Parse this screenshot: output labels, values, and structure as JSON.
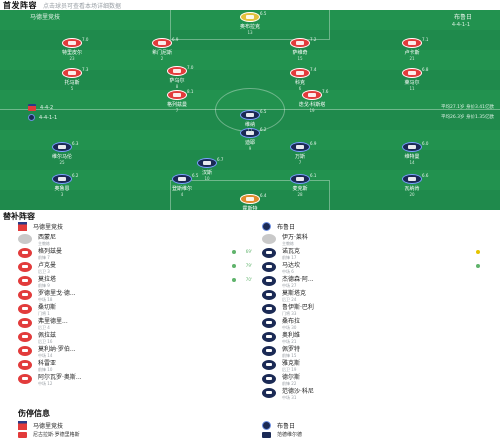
{
  "header": {
    "title": "首发阵容",
    "subtitle": "点击球员可查看本场详细数据"
  },
  "pitch": {
    "home_team": "马德里竞技",
    "away_team": "布鲁日",
    "away_form": "4-4-1-1",
    "center_text": "懂球帝",
    "home_formation": "4-4-2",
    "away_formation": "4-4-1-1",
    "home_summary": "平均27.1岁 身价3.41亿欧",
    "away_summary": "平均26.3岁 身价1.35亿欧",
    "home_players": [
      {
        "name": "奥布拉克",
        "num": "13",
        "rating": "6.5",
        "gk": true
      },
      {
        "name": "特里皮尔",
        "num": "23",
        "rating": "7.0"
      },
      {
        "name": "希门尼斯",
        "num": "2",
        "rating": "6.9"
      },
      {
        "name": "萨维奇",
        "num": "15",
        "rating": "7.2"
      },
      {
        "name": "卢卡斯",
        "num": "21",
        "rating": "7.1"
      },
      {
        "name": "托马斯",
        "num": "5",
        "rating": "7.3"
      },
      {
        "name": "萨乌尔",
        "num": "8",
        "rating": "7.0"
      },
      {
        "name": "科克",
        "num": "6",
        "rating": "7.4"
      },
      {
        "name": "莱马尔",
        "num": "11",
        "rating": "6.8"
      },
      {
        "name": "格列兹曼",
        "num": "7",
        "rating": "8.1"
      },
      {
        "name": "迭戈·科斯塔",
        "num": "19",
        "rating": "7.6"
      }
    ],
    "away_players": [
      {
        "name": "霍斯特",
        "num": "1",
        "rating": "6.4",
        "gk": true
      },
      {
        "name": "奥鲁恩",
        "num": "3",
        "rating": "6.2"
      },
      {
        "name": "登斯维尔",
        "num": "4",
        "rating": "6.5"
      },
      {
        "name": "麦克斯",
        "num": "28",
        "rating": "6.1"
      },
      {
        "name": "瓦纳肯",
        "num": "20",
        "rating": "6.6"
      },
      {
        "name": "维尔马伦",
        "num": "25",
        "rating": "6.3"
      },
      {
        "name": "汉斯",
        "num": "10",
        "rating": "6.7"
      },
      {
        "name": "万斯",
        "num": "7",
        "rating": "6.9"
      },
      {
        "name": "维特曼",
        "num": "14",
        "rating": "6.0"
      },
      {
        "name": "迪耶",
        "num": "9",
        "rating": "6.2"
      },
      {
        "name": "维纳",
        "num": "11",
        "rating": "6.5"
      }
    ]
  },
  "substitutes": {
    "title": "替补阵容",
    "home": {
      "team": "马德里竞技",
      "coach": {
        "name": "西蒙尼",
        "meta": "主教练"
      },
      "players": [
        {
          "name": "格列兹曼",
          "meta": "前锋 7",
          "time": "69'",
          "swap": "green"
        },
        {
          "name": "卢克曼",
          "meta": "后卫 3",
          "time": "79'",
          "swap": "green"
        },
        {
          "name": "莫拉塔",
          "meta": "前锋 9",
          "time": "70'",
          "swap": "green"
        },
        {
          "name": "罗德里戈·德...",
          "meta": "中场 18",
          "time": "",
          "swap": ""
        },
        {
          "name": "桑切斯",
          "meta": "门将 1",
          "time": "",
          "swap": ""
        },
        {
          "name": "弗里德里...",
          "meta": "后卫 4",
          "time": "",
          "swap": ""
        },
        {
          "name": "佩拉兹",
          "meta": "后卫 16",
          "time": "",
          "swap": ""
        },
        {
          "name": "莫利纳·罗伯...",
          "meta": "中场 14",
          "time": "",
          "swap": ""
        },
        {
          "name": "科雷亚",
          "meta": "前锋 10",
          "time": "",
          "swap": ""
        },
        {
          "name": "阿尔瓦罗·奥斯...",
          "meta": "中场 12",
          "time": "",
          "swap": ""
        }
      ]
    },
    "away": {
      "team": "布鲁日",
      "coach": {
        "name": "伊万·莱科",
        "meta": "主教练"
      },
      "players": [
        {
          "name": "诺瓦克",
          "meta": "前锋 17",
          "time": "",
          "swap": "yellow"
        },
        {
          "name": "马达坎",
          "meta": "中场 6",
          "time": "",
          "swap": "green"
        },
        {
          "name": "杰德森·阿...",
          "meta": "中场 27",
          "time": "",
          "swap": ""
        },
        {
          "name": "莫斯塔克",
          "meta": "后卫 24",
          "time": "",
          "swap": ""
        },
        {
          "name": "鲁伊斯·巴利",
          "meta": "门将 33",
          "time": "",
          "swap": ""
        },
        {
          "name": "桑布拉",
          "meta": "中场 30",
          "time": "",
          "swap": ""
        },
        {
          "name": "奥利维",
          "meta": "中场 21",
          "time": "",
          "swap": ""
        },
        {
          "name": "佩罗特",
          "meta": "前锋 15",
          "time": "",
          "swap": ""
        },
        {
          "name": "雅克斯",
          "meta": "后卫 19",
          "time": "",
          "swap": ""
        },
        {
          "name": "德尔斯",
          "meta": "前锋 22",
          "time": "",
          "swap": ""
        },
        {
          "name": "范德沙·科尼",
          "meta": "中场 31",
          "time": "",
          "swap": ""
        }
      ]
    }
  },
  "injuries": {
    "title": "伤停信息",
    "home": {
      "team": "马德里竞技",
      "players": [
        "尼古拉斯·罗德里格斯",
        "巴勃罗·巴里奥斯"
      ]
    },
    "away": {
      "team": "布鲁日",
      "players": [
        "范德维尔德",
        "奥诺迪卡"
      ]
    }
  },
  "colors": {
    "pitch": "#1f8a4c",
    "home": "#e23b3b",
    "away": "#1b2a55",
    "accent": "#5fb36b"
  }
}
